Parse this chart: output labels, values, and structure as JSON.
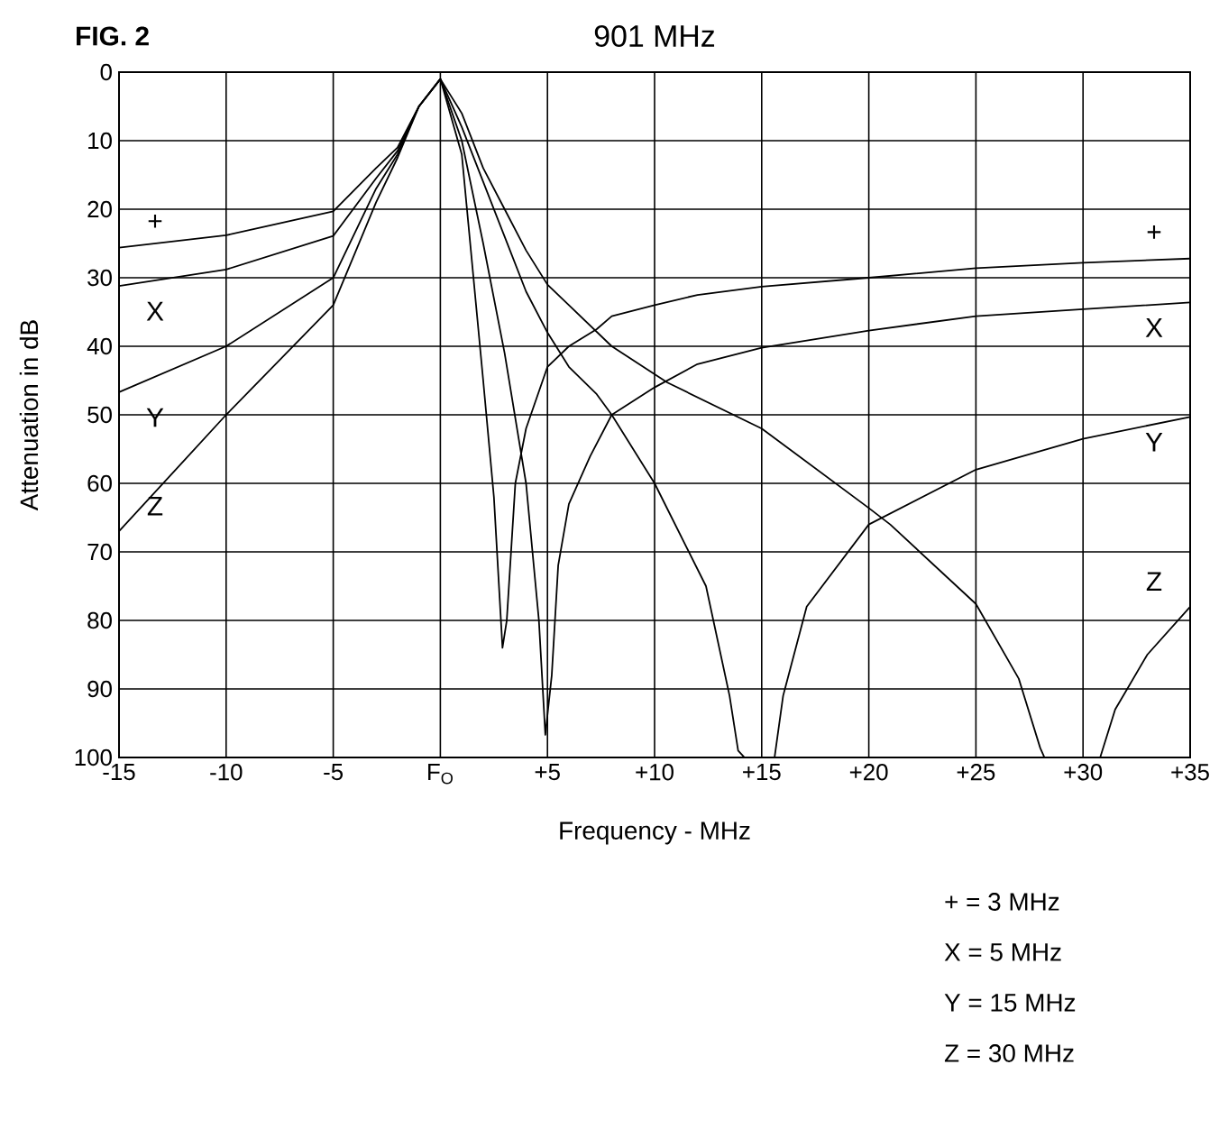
{
  "chart_data": {
    "type": "line",
    "title": "901 MHz",
    "xlabel": "Frequency - MHz",
    "ylabel": "Attenuation in dB",
    "xlim": [
      -15,
      35
    ],
    "ylim": [
      100,
      0
    ],
    "xticks": [
      -15,
      -10,
      -5,
      {
        "value": 0,
        "label": "F$_{O}$"
      },
      {
        "value": 5,
        "label": "+5"
      },
      {
        "value": 10,
        "label": "+10"
      },
      {
        "value": 15,
        "label": "+15"
      },
      {
        "value": 20,
        "label": "+20"
      },
      {
        "value": 25,
        "label": "+25"
      },
      {
        "value": 30,
        "label": "+30"
      },
      {
        "value": 35,
        "label": "+35"
      }
    ],
    "yticks": [
      0,
      10,
      20,
      30,
      40,
      50,
      60,
      70,
      80,
      90,
      100
    ],
    "grid": true,
    "marker": "none",
    "line_style": "solid",
    "series": [
      {
        "name": "+",
        "color": "#000000",
        "x": [
          -15,
          -10,
          -5,
          -3,
          -2,
          -1,
          0,
          1,
          2,
          2.5,
          2.9,
          3.1,
          3.5,
          4,
          5,
          6,
          7.3,
          8,
          10,
          12,
          15,
          20,
          25,
          30,
          35
        ],
        "values": [
          25.6,
          23.8,
          20.3,
          14,
          11,
          5,
          1,
          12,
          45,
          62,
          84,
          80,
          60,
          52,
          43,
          40,
          37.5,
          35.6,
          34,
          32.5,
          31.3,
          30,
          28.6,
          27.8,
          27.2
        ]
      },
      {
        "name": "X",
        "color": "#000000",
        "x": [
          -15,
          -10,
          -5,
          -3,
          -2,
          -1,
          0,
          1,
          2,
          3,
          4,
          4.6,
          4.9,
          5.2,
          5.5,
          6,
          7,
          8,
          10,
          12,
          15,
          20,
          25,
          30,
          35
        ],
        "values": [
          31.2,
          28.8,
          23.9,
          15.5,
          11.5,
          5,
          1,
          10,
          25,
          41,
          60,
          80,
          96.7,
          88,
          72,
          63,
          56,
          50,
          46,
          42.6,
          40.2,
          37.7,
          35.6,
          34.6,
          33.6
        ]
      },
      {
        "name": "Y",
        "color": "#000000",
        "x": [
          -15,
          -10,
          -5,
          -3,
          -2,
          -1,
          0,
          1,
          2,
          3,
          4,
          5,
          6,
          7.3,
          8,
          10,
          12.4,
          13.5,
          13.9,
          14.2,
          15.6,
          16,
          17.1,
          20,
          25,
          30,
          35
        ],
        "values": [
          46.7,
          40,
          30,
          17,
          12,
          5,
          1,
          8,
          16,
          24,
          32,
          38,
          43,
          47,
          50,
          60,
          75,
          91,
          99,
          100,
          100,
          91,
          78,
          66,
          58,
          53.5,
          50.3
        ]
      },
      {
        "name": "Z",
        "color": "#000000",
        "x": [
          -15,
          -10,
          -5,
          -3,
          -2,
          -1,
          0,
          1,
          2,
          3,
          4,
          5,
          6,
          8,
          10.6,
          15,
          20,
          21,
          25,
          27,
          28,
          28.2,
          30.8,
          31.5,
          33,
          35
        ],
        "values": [
          67,
          50,
          34,
          19,
          12.5,
          5,
          1,
          6,
          14,
          20,
          26,
          31,
          34,
          40,
          45.3,
          52,
          63.6,
          66,
          77.6,
          88.5,
          98.6,
          100,
          100,
          93,
          85,
          78
        ]
      }
    ],
    "annotations": [
      "FIG. 2",
      "+ = 3 MHz",
      "X = 5 MHz",
      "Y = 15 MHz",
      "Z = 30 MHz"
    ]
  }
}
